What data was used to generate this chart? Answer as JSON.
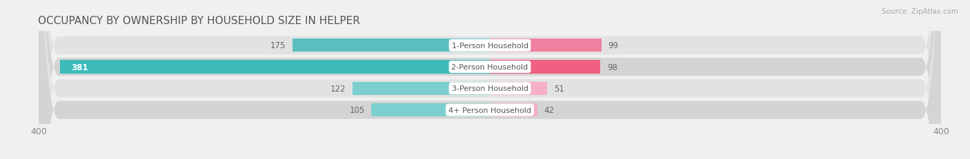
{
  "title": "OCCUPANCY BY OWNERSHIP BY HOUSEHOLD SIZE IN HELPER",
  "source": "Source: ZipAtlas.com",
  "categories": [
    "1-Person Household",
    "2-Person Household",
    "3-Person Household",
    "4+ Person Household"
  ],
  "owner_values": [
    175,
    381,
    122,
    105
  ],
  "renter_values": [
    99,
    98,
    51,
    42
  ],
  "owner_color": "#5bbfbf",
  "renter_color": "#f07090",
  "renter_color_light": "#f5a0b8",
  "axis_max": 400,
  "bg_color": "#f0f0f0",
  "row_bg_light": "#e8e8e8",
  "row_bg_dark": "#d8d8d8",
  "bar_height": 0.62,
  "title_fontsize": 11,
  "label_fontsize": 8.5,
  "tick_fontsize": 9,
  "legend_fontsize": 9
}
